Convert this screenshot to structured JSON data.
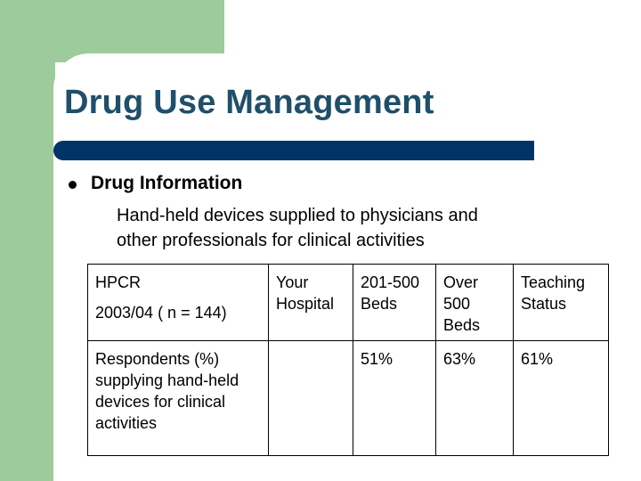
{
  "slide": {
    "title": "Drug Use Management",
    "bullet": {
      "heading": "Drug Information",
      "text_lines": [
        "Hand-held devices supplied to physicians and",
        "other professionals for clinical activities"
      ]
    }
  },
  "table": {
    "header": {
      "survey_line1": "HPCR",
      "survey_line2": "2003/04 ( n = 144)",
      "col_your_hospital": [
        "Your",
        "Hospital"
      ],
      "col_201_500": [
        "201-500",
        "Beds"
      ],
      "col_over_500": [
        "Over",
        "500",
        "Beds"
      ],
      "col_teaching": [
        "Teaching",
        "Status"
      ]
    },
    "row": {
      "label_lines": [
        "Respondents (%)",
        "supplying hand-held",
        "devices for clinical",
        "activities"
      ],
      "your_hospital": "",
      "beds_201_500": "51%",
      "over_500": "63%",
      "teaching": "61%"
    }
  },
  "colors": {
    "accent_green": "#9dcb9b",
    "title_text": "#1f4f6a",
    "title_bar": "#003366"
  }
}
